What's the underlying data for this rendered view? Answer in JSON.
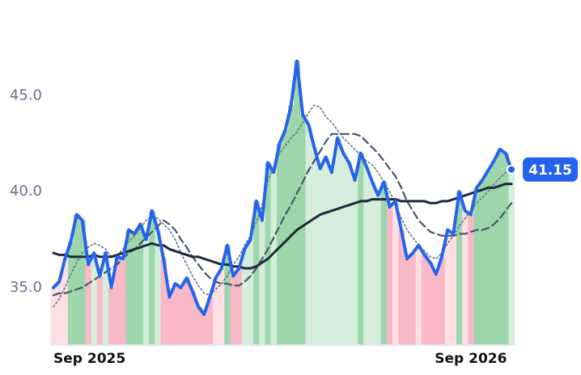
{
  "chart_data": {
    "type": "line",
    "categories": [
      "Sep 2025",
      null,
      null,
      null,
      null,
      null,
      null,
      null,
      null,
      null,
      null,
      null,
      null,
      null,
      null,
      null,
      null,
      null,
      null,
      null,
      null,
      null,
      null,
      null,
      null,
      null,
      null,
      null,
      null,
      null,
      null,
      null,
      null,
      null,
      null,
      null,
      null,
      null,
      null,
      null,
      null,
      null,
      null,
      null,
      null,
      null,
      null,
      null,
      null,
      null,
      null,
      null,
      null,
      null,
      null,
      null,
      null,
      null,
      null,
      null,
      null,
      null,
      null,
      null,
      null,
      null,
      null,
      null,
      null,
      null,
      null,
      null,
      "Sep 2026",
      null,
      null,
      null,
      null,
      null,
      null,
      null
    ],
    "series": [
      {
        "color": "#2563eb",
        "style": "solid",
        "values": [
          35.0,
          35.3,
          36.5,
          37.4,
          38.8,
          38.5,
          36.2,
          36.8,
          35.6,
          36.8,
          35.0,
          36.6,
          36.5,
          38.0,
          37.8,
          38.3,
          37.5,
          39.0,
          38.0,
          36.5,
          34.5,
          35.2,
          35.0,
          35.5,
          34.8,
          34.0,
          33.6,
          34.5,
          35.5,
          36.0,
          37.2,
          35.6,
          36.0,
          37.0,
          37.5,
          39.5,
          38.5,
          41.5,
          41.0,
          42.5,
          43.2,
          44.5,
          46.8,
          44.0,
          43.5,
          42.3,
          41.2,
          41.8,
          41.0,
          42.8,
          42.0,
          41.5,
          40.6,
          42.0,
          41.3,
          40.5,
          39.8,
          40.5,
          39.2,
          39.5,
          38.0,
          36.5,
          36.8,
          37.2,
          36.7,
          36.3,
          35.7,
          36.6,
          38.0,
          37.8,
          40.0,
          39.0,
          38.8,
          40.2,
          40.6,
          41.1,
          41.6,
          42.2,
          42.0,
          41.15
        ]
      },
      {
        "color": "#1e293b",
        "style": "solid",
        "values": [
          36.8,
          36.7,
          36.7,
          36.6,
          36.6,
          36.6,
          36.6,
          36.7,
          36.6,
          36.6,
          36.6,
          36.7,
          36.8,
          36.9,
          37.0,
          37.1,
          37.2,
          37.3,
          37.2,
          37.2,
          37.0,
          36.9,
          36.8,
          36.7,
          36.6,
          36.6,
          36.5,
          36.4,
          36.3,
          36.2,
          36.2,
          36.1,
          36.1,
          36.0,
          36.0,
          36.1,
          36.3,
          36.5,
          36.8,
          37.1,
          37.4,
          37.7,
          38.0,
          38.2,
          38.4,
          38.6,
          38.8,
          38.9,
          39.0,
          39.1,
          39.2,
          39.3,
          39.4,
          39.5,
          39.5,
          39.6,
          39.6,
          39.6,
          39.6,
          39.6,
          39.5,
          39.5,
          39.5,
          39.5,
          39.5,
          39.4,
          39.4,
          39.5,
          39.5,
          39.6,
          39.7,
          39.8,
          39.9,
          40.0,
          40.1,
          40.2,
          40.2,
          40.3,
          40.4,
          40.4
        ]
      },
      {
        "color": "#475569",
        "style": "dashed",
        "values": [
          34.6,
          34.7,
          34.7,
          34.8,
          34.9,
          35.0,
          35.2,
          35.4,
          35.6,
          35.8,
          36.0,
          36.2,
          36.5,
          36.8,
          37.0,
          37.3,
          37.6,
          37.9,
          38.2,
          38.5,
          38.3,
          38.0,
          37.5,
          37.1,
          36.6,
          36.2,
          35.8,
          35.5,
          35.3,
          35.2,
          35.2,
          35.1,
          35.1,
          35.3,
          35.6,
          36.0,
          36.5,
          37.0,
          37.6,
          38.2,
          38.8,
          39.3,
          39.9,
          40.5,
          41.1,
          41.6,
          42.1,
          42.6,
          43.0,
          43.0,
          43.0,
          43.0,
          43.0,
          42.9,
          42.6,
          42.3,
          42.0,
          41.6,
          41.2,
          40.8,
          40.2,
          39.5,
          39.0,
          38.5,
          38.2,
          37.9,
          37.8,
          37.7,
          37.7,
          37.7,
          37.8,
          37.8,
          37.9,
          38.0,
          38.0,
          38.1,
          38.3,
          38.6,
          39.0,
          39.4
        ]
      },
      {
        "color": "#64748b",
        "style": "dotted",
        "values": [
          34.0,
          34.4,
          35.0,
          35.7,
          36.3,
          36.8,
          37.1,
          37.3,
          37.2,
          37.0,
          36.6,
          36.7,
          37.0,
          37.4,
          37.7,
          38.1,
          38.5,
          38.7,
          38.6,
          38.3,
          38.0,
          37.5,
          36.8,
          36.2,
          35.6,
          35.1,
          34.7,
          34.6,
          34.9,
          35.2,
          35.6,
          36.2,
          36.6,
          37.2,
          37.7,
          38.4,
          39.3,
          40.6,
          41.3,
          42.0,
          42.4,
          42.8,
          43.1,
          43.6,
          44.1,
          44.5,
          44.4,
          43.9,
          43.6,
          43.2,
          42.8,
          42.5,
          42.2,
          41.9,
          41.6,
          41.4,
          41.0,
          40.5,
          40.0,
          39.4,
          38.6,
          38.0,
          37.6,
          37.2,
          36.9,
          36.6,
          36.5,
          36.8,
          37.3,
          37.7,
          38.2,
          38.6,
          39.0,
          39.4,
          39.7,
          40.0,
          40.4,
          40.7,
          41.0,
          41.4
        ]
      }
    ],
    "band_colors": {
      "strong_up": "#9dd6aa",
      "up": "#d5eedb",
      "strong_down": "#f9b8c5",
      "down": "#fde0e6"
    },
    "ylim": [
      32,
      48.3
    ],
    "yticks": [
      {
        "value": 35,
        "label": "35.0"
      },
      {
        "value": 40,
        "label": "40.0"
      },
      {
        "value": 45,
        "label": "45.0"
      }
    ],
    "grid": false
  }
}
